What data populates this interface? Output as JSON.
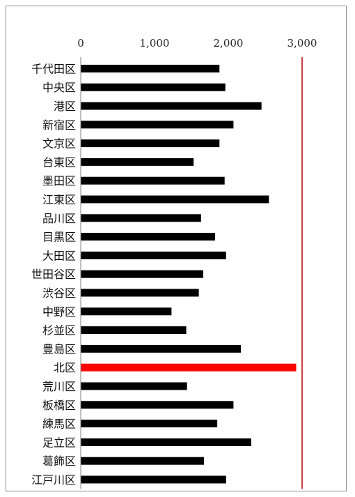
{
  "chart_data": {
    "type": "bar",
    "orientation": "horizontal",
    "title": "",
    "xlabel": "",
    "ylabel": "",
    "xlim": [
      0,
      3000
    ],
    "xticks": [
      0,
      1000,
      2000,
      3000
    ],
    "xtick_labels": [
      "0",
      "1,000",
      "2,000",
      "3,000"
    ],
    "axis_position": "top",
    "grid": false,
    "categories": [
      "千代田区",
      "中央区",
      "港区",
      "新宿区",
      "文京区",
      "台東区",
      "墨田区",
      "江東区",
      "品川区",
      "目黒区",
      "大田区",
      "世田谷区",
      "渋谷区",
      "中野区",
      "杉並区",
      "豊島区",
      "北区",
      "荒川区",
      "板橋区",
      "練馬区",
      "足立区",
      "葛飾区",
      "江戸川区"
    ],
    "values": [
      1880,
      1960,
      2450,
      2070,
      1880,
      1530,
      1950,
      2550,
      1630,
      1820,
      1970,
      1660,
      1600,
      1230,
      1430,
      2170,
      2920,
      1440,
      2070,
      1850,
      2310,
      1670,
      1970
    ],
    "colors": {
      "default": "#000000",
      "highlight": "#ff0000",
      "reference_line": "#c00000",
      "axis": "#808080"
    },
    "highlight_category": "北区"
  }
}
